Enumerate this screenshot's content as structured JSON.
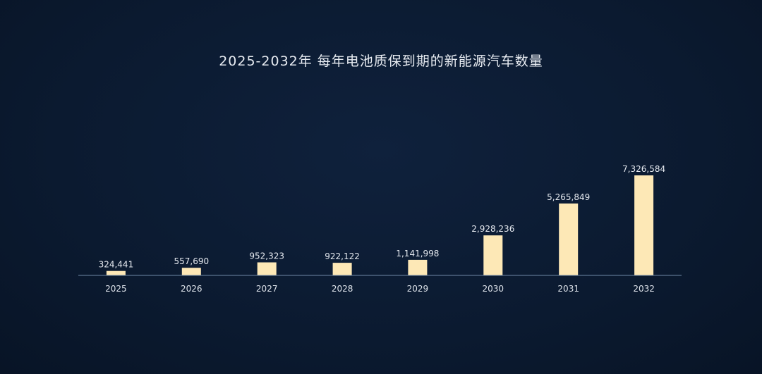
{
  "chart_data": {
    "type": "bar",
    "title": "2025-2032年 每年电池质保到期的新能源汽车数量",
    "categories": [
      "2025",
      "2026",
      "2027",
      "2028",
      "2029",
      "2030",
      "2031",
      "2032"
    ],
    "values": [
      324441,
      557690,
      952323,
      922122,
      1141998,
      2928236,
      5265849,
      7326584
    ],
    "value_labels": [
      "324,441",
      "557,690",
      "952,323",
      "922,122",
      "1,141,998",
      "2,928,236",
      "5,265,849",
      "7,326,584"
    ],
    "xlabel": "",
    "ylabel": "",
    "ylim": [
      0,
      7326584
    ],
    "grid": false,
    "bar_color": "#fde8b6",
    "background_color": "#0b1a30"
  }
}
